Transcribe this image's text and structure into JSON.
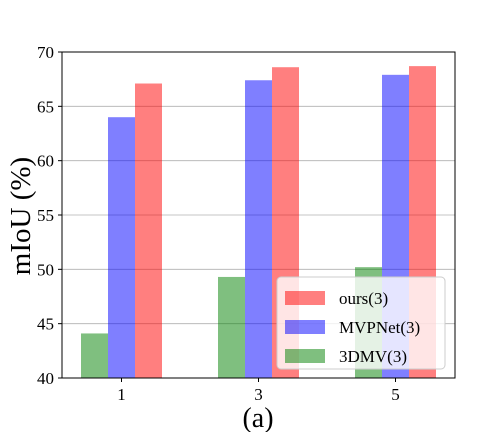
{
  "chart_data": {
    "type": "bar",
    "categories": [
      "1",
      "3",
      "5"
    ],
    "series": [
      {
        "name": "3DMV(3)",
        "values": [
          44.1,
          49.3,
          50.2
        ],
        "color": "#008000",
        "alpha": 0.5
      },
      {
        "name": "MVPNet(3)",
        "values": [
          64.0,
          67.4,
          67.9
        ],
        "color": "#0000ff",
        "alpha": 0.5
      },
      {
        "name": "ours(3)",
        "values": [
          67.1,
          68.6,
          68.7
        ],
        "color": "#ff0000",
        "alpha": 0.5
      }
    ],
    "ylabel": "mIoU (%)",
    "xlabel": "(a)",
    "ylim": [
      40,
      70
    ],
    "yticks": [
      40,
      45,
      50,
      55,
      60,
      65,
      70
    ],
    "grid": "y",
    "legend": {
      "position": "lower-right",
      "order": [
        "ours(3)",
        "MVPNet(3)",
        "3DMV(3)"
      ]
    }
  }
}
